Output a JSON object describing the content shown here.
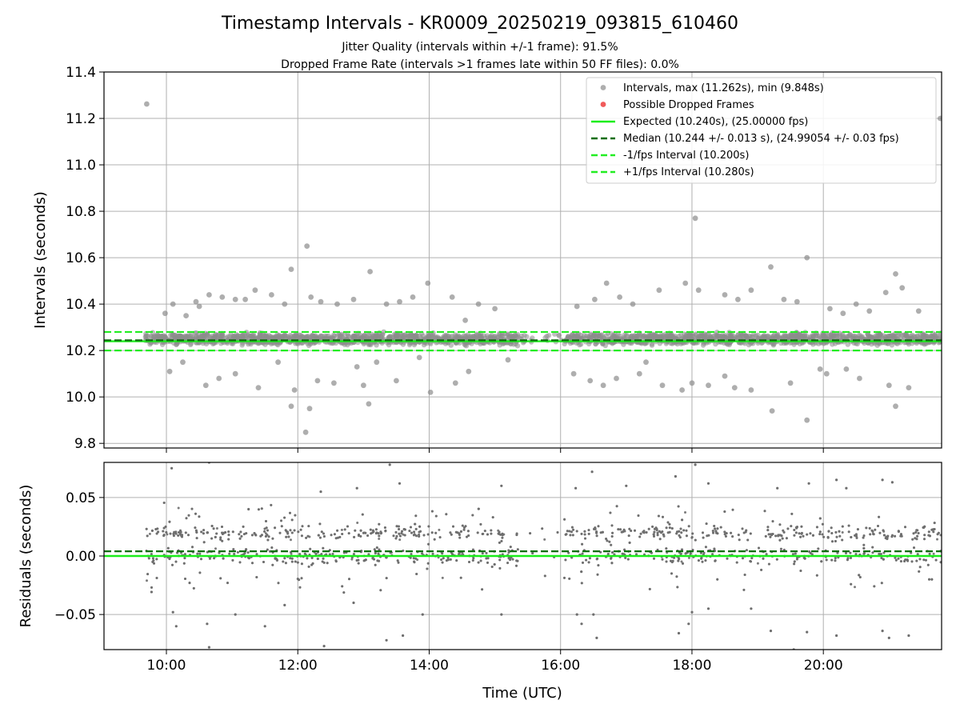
{
  "title": "Timestamp Intervals - KR0009_20250219_093815_610460",
  "subtitle_1": "Jitter Quality (intervals within +/-1 frame): 91.5%",
  "subtitle_2": "Dropped Frame Rate (intervals >1 frames late within 50 FF files): 0.0%",
  "xlabel": "Time (UTC)",
  "colors": {
    "intervals": "#8c8c8c",
    "residuals": "#6e6e6e",
    "dropped": "#f05a5a",
    "expected": "#1aee1a",
    "median": "#0a6e0a",
    "fps_bounds": "#22ee22",
    "grid": "#b0b0b0"
  },
  "chart_data": [
    {
      "type": "scatter",
      "panel": "top",
      "ylabel": "Intervals (seconds)",
      "xlim_hours": [
        9.05,
        21.8
      ],
      "ylim": [
        9.78,
        11.4
      ],
      "x_ticks": [
        {
          "value": 10,
          "label": "10:00"
        },
        {
          "value": 12,
          "label": "12:00"
        },
        {
          "value": 14,
          "label": "14:00"
        },
        {
          "value": 16,
          "label": "16:00"
        },
        {
          "value": 18,
          "label": "18:00"
        },
        {
          "value": 20,
          "label": "20:00"
        }
      ],
      "y_ticks": [
        {
          "value": 9.8,
          "label": "9.8"
        },
        {
          "value": 10.0,
          "label": "10.0"
        },
        {
          "value": 10.2,
          "label": "10.2"
        },
        {
          "value": 10.4,
          "label": "10.4"
        },
        {
          "value": 10.6,
          "label": "10.6"
        },
        {
          "value": 10.8,
          "label": "10.8"
        },
        {
          "value": 11.0,
          "label": "11.0"
        },
        {
          "value": 11.2,
          "label": "11.2"
        },
        {
          "value": 11.4,
          "label": "11.4"
        }
      ],
      "grid": true,
      "legend_position": "top-right",
      "legend": [
        {
          "label": "Intervals, max (11.262s), min (9.848s)",
          "kind": "dot",
          "color": "#8c8c8c"
        },
        {
          "label": "Possible Dropped Frames",
          "kind": "dot",
          "color": "#f05a5a"
        },
        {
          "label": "Expected (10.240s), (25.00000 fps)",
          "kind": "line",
          "color": "#1aee1a"
        },
        {
          "label": "Median (10.244 +/- 0.013 s), (24.99054 +/- 0.03 fps)",
          "kind": "dash",
          "color": "#0a6e0a"
        },
        {
          "label": "-1/fps Interval (10.200s)",
          "kind": "dash",
          "color": "#22ee22"
        },
        {
          "label": "+1/fps Interval (10.280s)",
          "kind": "dash",
          "color": "#22ee22"
        }
      ],
      "reference_lines": [
        {
          "name": "expected",
          "y": 10.24,
          "style": "solid"
        },
        {
          "name": "median",
          "y": 10.244,
          "style": "dashed"
        },
        {
          "name": "minus_one_fps",
          "y": 10.2,
          "style": "dashed"
        },
        {
          "name": "plus_one_fps",
          "y": 10.28,
          "style": "dashed"
        }
      ],
      "series": [
        {
          "name": "Intervals",
          "points": [
            [
              9.7,
              11.262
            ],
            [
              21.78,
              11.2
            ],
            [
              12.14,
              10.65
            ],
            [
              12.12,
              9.848
            ],
            [
              19.75,
              10.6
            ],
            [
              11.9,
              10.55
            ],
            [
              13.1,
              10.54
            ],
            [
              19.2,
              10.56
            ],
            [
              18.05,
              10.77
            ],
            [
              13.98,
              10.49
            ],
            [
              16.7,
              10.49
            ],
            [
              17.9,
              10.49
            ],
            [
              21.1,
              10.53
            ],
            [
              21.2,
              10.47
            ],
            [
              20.95,
              10.45
            ],
            [
              18.1,
              10.46
            ],
            [
              17.5,
              10.46
            ],
            [
              17.1,
              10.4
            ],
            [
              16.9,
              10.43
            ],
            [
              16.52,
              10.42
            ],
            [
              16.25,
              10.39
            ],
            [
              18.5,
              10.44
            ],
            [
              18.7,
              10.42
            ],
            [
              18.9,
              10.46
            ],
            [
              19.4,
              10.42
            ],
            [
              19.6,
              10.41
            ],
            [
              20.1,
              10.38
            ],
            [
              20.5,
              10.4
            ],
            [
              20.3,
              10.36
            ],
            [
              20.7,
              10.37
            ],
            [
              21.45,
              10.37
            ],
            [
              14.35,
              10.43
            ],
            [
              14.55,
              10.33
            ],
            [
              14.75,
              10.4
            ],
            [
              15.0,
              10.38
            ],
            [
              13.75,
              10.43
            ],
            [
              13.55,
              10.41
            ],
            [
              13.35,
              10.4
            ],
            [
              12.85,
              10.42
            ],
            [
              12.6,
              10.4
            ],
            [
              12.35,
              10.41
            ],
            [
              12.2,
              10.43
            ],
            [
              11.6,
              10.44
            ],
            [
              11.35,
              10.46
            ],
            [
              11.05,
              10.42
            ],
            [
              10.85,
              10.43
            ],
            [
              10.65,
              10.44
            ],
            [
              10.45,
              10.41
            ],
            [
              10.1,
              10.4
            ],
            [
              9.98,
              10.36
            ],
            [
              11.8,
              10.4
            ],
            [
              11.2,
              10.42
            ],
            [
              10.3,
              10.35
            ],
            [
              10.5,
              10.39
            ],
            [
              12.18,
              9.95
            ],
            [
              12.3,
              10.07
            ],
            [
              11.9,
              9.96
            ],
            [
              13.08,
              9.97
            ],
            [
              14.02,
              10.02
            ],
            [
              12.55,
              10.06
            ],
            [
              13.0,
              10.05
            ],
            [
              13.5,
              10.07
            ],
            [
              11.4,
              10.04
            ],
            [
              10.6,
              10.05
            ],
            [
              10.8,
              10.08
            ],
            [
              11.05,
              10.1
            ],
            [
              11.95,
              10.03
            ],
            [
              14.4,
              10.06
            ],
            [
              14.6,
              10.11
            ],
            [
              16.2,
              10.1
            ],
            [
              16.45,
              10.07
            ],
            [
              16.65,
              10.05
            ],
            [
              16.85,
              10.08
            ],
            [
              17.2,
              10.1
            ],
            [
              17.55,
              10.05
            ],
            [
              17.85,
              10.03
            ],
            [
              18.0,
              10.06
            ],
            [
              18.25,
              10.05
            ],
            [
              18.5,
              10.09
            ],
            [
              18.65,
              10.04
            ],
            [
              18.9,
              10.03
            ],
            [
              19.22,
              9.94
            ],
            [
              19.5,
              10.06
            ],
            [
              19.75,
              9.9
            ],
            [
              20.05,
              10.1
            ],
            [
              20.55,
              10.08
            ],
            [
              21.0,
              10.05
            ],
            [
              21.1,
              9.96
            ],
            [
              21.3,
              10.04
            ],
            [
              20.35,
              10.12
            ],
            [
              19.95,
              10.12
            ],
            [
              10.05,
              10.11
            ],
            [
              10.25,
              10.15
            ],
            [
              12.9,
              10.13
            ],
            [
              13.2,
              10.15
            ],
            [
              13.85,
              10.17
            ],
            [
              11.7,
              10.15
            ],
            [
              15.2,
              10.16
            ],
            [
              17.3,
              10.15
            ]
          ]
        }
      ]
    },
    {
      "type": "scatter",
      "panel": "bottom",
      "ylabel": "Residuals (seconds)",
      "xlabel": "Time (UTC)",
      "xlim_hours": [
        9.05,
        21.8
      ],
      "ylim": [
        -0.08,
        0.08
      ],
      "y_ticks": [
        {
          "value": 0.05,
          "label": "0.05"
        },
        {
          "value": 0.0,
          "label": "0.00"
        },
        {
          "value": -0.05,
          "label": "−0.05"
        }
      ],
      "grid": true,
      "reference_lines": [
        {
          "name": "expected",
          "y": 0.0,
          "style": "solid"
        },
        {
          "name": "median",
          "y": 0.004,
          "style": "dashed"
        }
      ],
      "series": [
        {
          "name": "Residuals",
          "points": [
            [
              10.08,
              0.075
            ],
            [
              11.25,
              0.04
            ],
            [
              12.35,
              0.055
            ],
            [
              12.9,
              0.058
            ],
            [
              13.4,
              0.078
            ],
            [
              13.55,
              0.062
            ],
            [
              15.1,
              0.06
            ],
            [
              16.23,
              0.058
            ],
            [
              16.48,
              0.072
            ],
            [
              17.0,
              0.06
            ],
            [
              17.75,
              0.068
            ],
            [
              18.05,
              0.078
            ],
            [
              18.25,
              0.062
            ],
            [
              19.3,
              0.058
            ],
            [
              19.78,
              0.062
            ],
            [
              20.2,
              0.065
            ],
            [
              20.35,
              0.058
            ],
            [
              20.9,
              0.065
            ],
            [
              21.05,
              0.063
            ],
            [
              10.65,
              0.08
            ],
            [
              10.1,
              -0.048
            ],
            [
              10.15,
              -0.06
            ],
            [
              10.62,
              -0.058
            ],
            [
              10.65,
              -0.078
            ],
            [
              11.05,
              -0.05
            ],
            [
              11.5,
              -0.06
            ],
            [
              12.4,
              -0.077
            ],
            [
              13.35,
              -0.072
            ],
            [
              13.6,
              -0.068
            ],
            [
              13.9,
              -0.05
            ],
            [
              15.1,
              -0.05
            ],
            [
              16.25,
              -0.05
            ],
            [
              16.32,
              -0.058
            ],
            [
              16.5,
              -0.05
            ],
            [
              16.55,
              -0.07
            ],
            [
              17.8,
              -0.066
            ],
            [
              17.95,
              -0.058
            ],
            [
              18.0,
              -0.048
            ],
            [
              18.25,
              -0.045
            ],
            [
              18.9,
              -0.045
            ],
            [
              19.2,
              -0.064
            ],
            [
              19.55,
              -0.08
            ],
            [
              19.75,
              -0.065
            ],
            [
              20.2,
              -0.068
            ],
            [
              20.9,
              -0.064
            ],
            [
              21.3,
              -0.068
            ],
            [
              21.0,
              -0.07
            ],
            [
              12.85,
              -0.04
            ],
            [
              11.8,
              -0.042
            ]
          ]
        }
      ]
    }
  ]
}
